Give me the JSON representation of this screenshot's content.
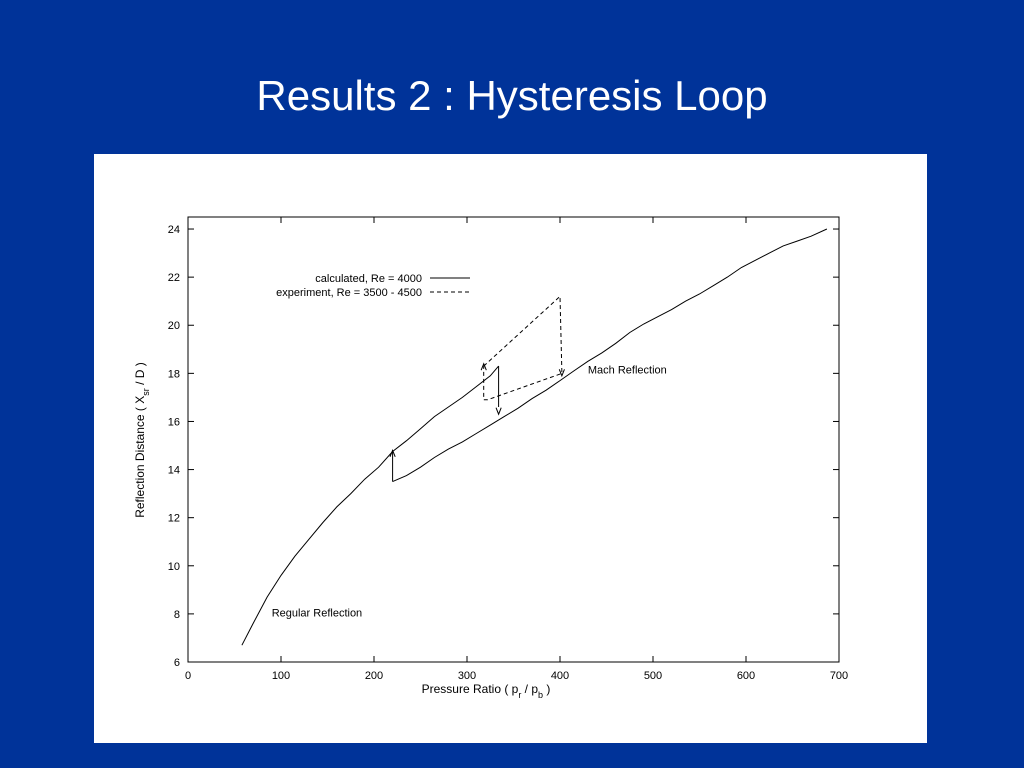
{
  "slide": {
    "title": "Results 2 : Hysteresis Loop"
  },
  "chart_data": {
    "type": "line",
    "xlabel": {
      "prefix": "Pressure Ratio ( p",
      "sub1": "r",
      "mid": " / p",
      "sub2": "b",
      "suffix": " )"
    },
    "ylabel": {
      "prefix": "Reflection Distance ( X",
      "sub": "sr",
      "suffix": " / D )"
    },
    "xlim": [
      0,
      700
    ],
    "ylim": [
      6,
      24.5
    ],
    "xticks": [
      0,
      100,
      200,
      300,
      400,
      500,
      600,
      700
    ],
    "yticks": [
      6,
      8,
      10,
      12,
      14,
      16,
      18,
      20,
      22,
      24
    ],
    "grid": false,
    "legend_position": "top-left",
    "series": [
      {
        "name": "calculated, Re = 4000",
        "style": "solid",
        "color": "#000000",
        "segments": [
          [
            [
              58,
              6.7
            ],
            [
              70,
              7.6
            ],
            [
              85,
              8.7
            ],
            [
              100,
              9.6
            ],
            [
              115,
              10.4
            ],
            [
              130,
              11.1
            ],
            [
              145,
              11.8
            ],
            [
              160,
              12.45
            ],
            [
              175,
              13.0
            ],
            [
              190,
              13.6
            ],
            [
              205,
              14.1
            ],
            [
              220,
              14.75
            ],
            [
              235,
              15.2
            ],
            [
              250,
              15.7
            ],
            [
              265,
              16.2
            ],
            [
              280,
              16.6
            ],
            [
              295,
              17.0
            ],
            [
              310,
              17.45
            ],
            [
              325,
              17.9
            ],
            [
              334,
              18.3
            ]
          ],
          [
            [
              334,
              18.3
            ],
            [
              334,
              16.6
            ]
          ],
          [
            [
              220,
              13.5
            ],
            [
              235,
              13.75
            ],
            [
              250,
              14.1
            ],
            [
              265,
              14.5
            ],
            [
              280,
              14.85
            ],
            [
              295,
              15.15
            ],
            [
              310,
              15.5
            ],
            [
              325,
              15.85
            ],
            [
              340,
              16.2
            ],
            [
              355,
              16.55
            ],
            [
              370,
              16.95
            ],
            [
              385,
              17.3
            ],
            [
              400,
              17.7
            ],
            [
              415,
              18.1
            ],
            [
              430,
              18.5
            ],
            [
              445,
              18.85
            ],
            [
              460,
              19.25
            ],
            [
              475,
              19.7
            ],
            [
              490,
              20.05
            ],
            [
              505,
              20.35
            ],
            [
              520,
              20.65
            ],
            [
              535,
              21.0
            ],
            [
              550,
              21.3
            ],
            [
              565,
              21.65
            ],
            [
              580,
              22.0
            ],
            [
              595,
              22.4
            ],
            [
              610,
              22.7
            ],
            [
              625,
              23.0
            ],
            [
              640,
              23.3
            ],
            [
              655,
              23.5
            ],
            [
              670,
              23.7
            ],
            [
              687,
              24.0
            ]
          ],
          [
            [
              220,
              13.5
            ],
            [
              220,
              14.75
            ]
          ]
        ],
        "arrows": [
          {
            "from": [
              220,
              13.6
            ],
            "to": [
              220,
              14.8
            ]
          },
          {
            "from": [
              334,
              17.2
            ],
            "to": [
              334,
              16.3
            ]
          }
        ]
      },
      {
        "name": "experiment, Re = 3500 - 4500",
        "style": "dashed",
        "color": "#000000",
        "segments": [
          [
            [
              318,
              18.3
            ],
            [
              400,
              21.2
            ],
            [
              402,
              18.0
            ],
            [
              322,
              16.9
            ],
            [
              318,
              16.9
            ],
            [
              318,
              18.3
            ]
          ]
        ],
        "arrows": [
          {
            "from": [
              318,
              17.3
            ],
            "to": [
              318,
              18.4
            ]
          },
          {
            "from": [
              402,
              18.8
            ],
            "to": [
              402,
              17.9
            ]
          }
        ]
      }
    ],
    "annotations": [
      {
        "text": "Mach Reflection",
        "x": 430,
        "y": 18.0
      },
      {
        "text": "Regular Reflection",
        "x": 90,
        "y": 7.9
      }
    ]
  }
}
